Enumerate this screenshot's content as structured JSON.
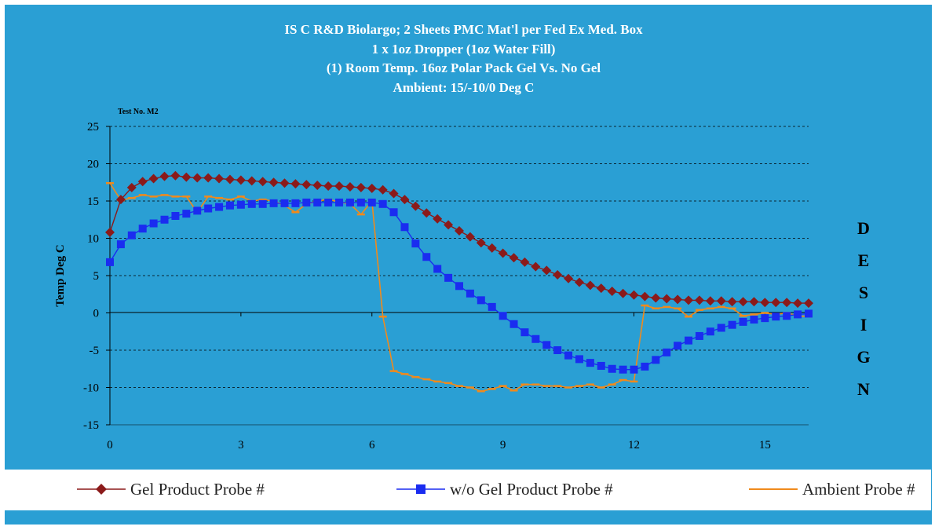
{
  "chart_data": {
    "type": "line",
    "title_lines": [
      "IS C R&D Biolargo; 2 Sheets PMC Mat'l per Fed Ex Med. Box",
      "1 x 1oz Dropper (1oz Water Fill)",
      "(1) Room Temp. 16oz Polar Pack Gel Vs. No Gel",
      "Ambient: 15/-10/0 Deg C"
    ],
    "annotation": "Test No. M2",
    "side_label": [
      "D",
      "E",
      "S",
      "I",
      "G",
      "N"
    ],
    "ylabel": "Temp Deg C",
    "xlabel": "",
    "xlim": [
      0,
      16
    ],
    "ylim": [
      -15,
      25
    ],
    "x_ticks": [
      0,
      3,
      6,
      9,
      12,
      15
    ],
    "y_ticks": [
      25,
      20,
      15,
      10,
      5,
      0,
      -5,
      -10,
      -15
    ],
    "grid": "horizontal-dashed",
    "legend_position": "bottom",
    "series": [
      {
        "name": "Gel Product Probe #",
        "color": "#8b1a1a",
        "marker": "diamond",
        "points": [
          [
            0,
            10.8
          ],
          [
            0.25,
            15.2
          ],
          [
            0.5,
            16.8
          ],
          [
            0.75,
            17.6
          ],
          [
            1,
            18.0
          ],
          [
            1.25,
            18.3
          ],
          [
            1.5,
            18.4
          ],
          [
            1.75,
            18.2
          ],
          [
            2,
            18.1
          ],
          [
            2.25,
            18.1
          ],
          [
            2.5,
            18.0
          ],
          [
            2.75,
            17.9
          ],
          [
            3,
            17.8
          ],
          [
            3.25,
            17.7
          ],
          [
            3.5,
            17.6
          ],
          [
            3.75,
            17.5
          ],
          [
            4,
            17.4
          ],
          [
            4.25,
            17.3
          ],
          [
            4.5,
            17.2
          ],
          [
            4.75,
            17.1
          ],
          [
            5,
            17.0
          ],
          [
            5.25,
            17.0
          ],
          [
            5.5,
            16.9
          ],
          [
            5.75,
            16.8
          ],
          [
            6,
            16.7
          ],
          [
            6.25,
            16.5
          ],
          [
            6.5,
            16.0
          ],
          [
            6.75,
            15.2
          ],
          [
            7,
            14.3
          ],
          [
            7.25,
            13.4
          ],
          [
            7.5,
            12.6
          ],
          [
            7.75,
            11.8
          ],
          [
            8,
            11.0
          ],
          [
            8.25,
            10.2
          ],
          [
            8.5,
            9.4
          ],
          [
            8.75,
            8.7
          ],
          [
            9,
            8.0
          ],
          [
            9.25,
            7.4
          ],
          [
            9.5,
            6.8
          ],
          [
            9.75,
            6.2
          ],
          [
            10,
            5.7
          ],
          [
            10.25,
            5.1
          ],
          [
            10.5,
            4.6
          ],
          [
            10.75,
            4.1
          ],
          [
            11,
            3.7
          ],
          [
            11.25,
            3.3
          ],
          [
            11.5,
            2.9
          ],
          [
            11.75,
            2.6
          ],
          [
            12,
            2.4
          ],
          [
            12.25,
            2.2
          ],
          [
            12.5,
            2.0
          ],
          [
            12.75,
            1.9
          ],
          [
            13,
            1.8
          ],
          [
            13.25,
            1.7
          ],
          [
            13.5,
            1.7
          ],
          [
            13.75,
            1.6
          ],
          [
            14,
            1.6
          ],
          [
            14.25,
            1.5
          ],
          [
            14.5,
            1.5
          ],
          [
            14.75,
            1.5
          ],
          [
            15,
            1.4
          ],
          [
            15.25,
            1.4
          ],
          [
            15.5,
            1.4
          ],
          [
            15.75,
            1.3
          ],
          [
            16,
            1.3
          ]
        ]
      },
      {
        "name": "w/o Gel Product Probe #",
        "color": "#1a2cf0",
        "marker": "square",
        "points": [
          [
            0,
            6.8
          ],
          [
            0.25,
            9.2
          ],
          [
            0.5,
            10.4
          ],
          [
            0.75,
            11.3
          ],
          [
            1,
            12.0
          ],
          [
            1.25,
            12.5
          ],
          [
            1.5,
            13.0
          ],
          [
            1.75,
            13.3
          ],
          [
            2,
            13.7
          ],
          [
            2.25,
            14.0
          ],
          [
            2.5,
            14.2
          ],
          [
            2.75,
            14.4
          ],
          [
            3,
            14.5
          ],
          [
            3.25,
            14.6
          ],
          [
            3.5,
            14.6
          ],
          [
            3.75,
            14.7
          ],
          [
            4,
            14.7
          ],
          [
            4.25,
            14.7
          ],
          [
            4.5,
            14.8
          ],
          [
            4.75,
            14.8
          ],
          [
            5,
            14.8
          ],
          [
            5.25,
            14.8
          ],
          [
            5.5,
            14.8
          ],
          [
            5.75,
            14.8
          ],
          [
            6,
            14.8
          ],
          [
            6.25,
            14.6
          ],
          [
            6.5,
            13.5
          ],
          [
            6.75,
            11.5
          ],
          [
            7,
            9.3
          ],
          [
            7.25,
            7.5
          ],
          [
            7.5,
            5.9
          ],
          [
            7.75,
            4.7
          ],
          [
            8,
            3.6
          ],
          [
            8.25,
            2.6
          ],
          [
            8.5,
            1.7
          ],
          [
            8.75,
            0.8
          ],
          [
            9,
            -0.4
          ],
          [
            9.25,
            -1.5
          ],
          [
            9.5,
            -2.6
          ],
          [
            9.75,
            -3.5
          ],
          [
            10,
            -4.3
          ],
          [
            10.25,
            -5.0
          ],
          [
            10.5,
            -5.7
          ],
          [
            10.75,
            -6.2
          ],
          [
            11,
            -6.7
          ],
          [
            11.25,
            -7.1
          ],
          [
            11.5,
            -7.5
          ],
          [
            11.75,
            -7.6
          ],
          [
            12,
            -7.6
          ],
          [
            12.25,
            -7.2
          ],
          [
            12.5,
            -6.3
          ],
          [
            12.75,
            -5.3
          ],
          [
            13,
            -4.4
          ],
          [
            13.25,
            -3.7
          ],
          [
            13.5,
            -3.1
          ],
          [
            13.75,
            -2.5
          ],
          [
            14,
            -2.0
          ],
          [
            14.25,
            -1.6
          ],
          [
            14.5,
            -1.2
          ],
          [
            14.75,
            -0.9
          ],
          [
            15,
            -0.7
          ],
          [
            15.25,
            -0.5
          ],
          [
            15.5,
            -0.4
          ],
          [
            15.75,
            -0.2
          ],
          [
            16,
            -0.1
          ]
        ]
      },
      {
        "name": "Ambient Probe #",
        "color": "#f08a1c",
        "marker": "dash",
        "points": [
          [
            0,
            17.4
          ],
          [
            0.25,
            15.1
          ],
          [
            0.5,
            15.4
          ],
          [
            0.75,
            15.8
          ],
          [
            1,
            15.6
          ],
          [
            1.25,
            15.8
          ],
          [
            1.5,
            15.6
          ],
          [
            1.75,
            15.6
          ],
          [
            2,
            13.5
          ],
          [
            2.25,
            15.6
          ],
          [
            2.5,
            15.4
          ],
          [
            2.75,
            15.2
          ],
          [
            3,
            15.6
          ],
          [
            3.25,
            15.0
          ],
          [
            3.5,
            15.2
          ],
          [
            3.75,
            15.0
          ],
          [
            4,
            14.4
          ],
          [
            4.25,
            13.5
          ],
          [
            4.5,
            14.6
          ],
          [
            4.75,
            15.0
          ],
          [
            5,
            15.2
          ],
          [
            5.25,
            14.9
          ],
          [
            5.5,
            14.6
          ],
          [
            5.75,
            13.2
          ],
          [
            6,
            15.0
          ],
          [
            6.25,
            -0.5
          ],
          [
            6.5,
            -7.8
          ],
          [
            6.75,
            -8.2
          ],
          [
            7,
            -8.6
          ],
          [
            7.25,
            -8.9
          ],
          [
            7.5,
            -9.2
          ],
          [
            7.75,
            -9.4
          ],
          [
            8,
            -9.8
          ],
          [
            8.25,
            -10.0
          ],
          [
            8.5,
            -10.5
          ],
          [
            8.75,
            -10.2
          ],
          [
            9,
            -9.8
          ],
          [
            9.25,
            -10.4
          ],
          [
            9.5,
            -9.6
          ],
          [
            9.75,
            -9.6
          ],
          [
            10,
            -9.8
          ],
          [
            10.25,
            -9.8
          ],
          [
            10.5,
            -10.0
          ],
          [
            10.75,
            -9.8
          ],
          [
            11,
            -9.6
          ],
          [
            11.25,
            -10.0
          ],
          [
            11.5,
            -9.6
          ],
          [
            11.75,
            -9.0
          ],
          [
            12,
            -9.2
          ],
          [
            12.25,
            1.0
          ],
          [
            12.5,
            0.6
          ],
          [
            12.75,
            0.8
          ],
          [
            13,
            0.6
          ],
          [
            13.25,
            -0.5
          ],
          [
            13.5,
            0.4
          ],
          [
            13.75,
            0.6
          ],
          [
            14,
            0.8
          ],
          [
            14.25,
            0.6
          ],
          [
            14.5,
            -0.4
          ],
          [
            14.75,
            -0.2
          ],
          [
            15,
            0.0
          ],
          [
            15.25,
            -0.2
          ],
          [
            15.5,
            0.0
          ],
          [
            15.75,
            -0.4
          ],
          [
            16,
            -0.5
          ]
        ]
      }
    ]
  }
}
